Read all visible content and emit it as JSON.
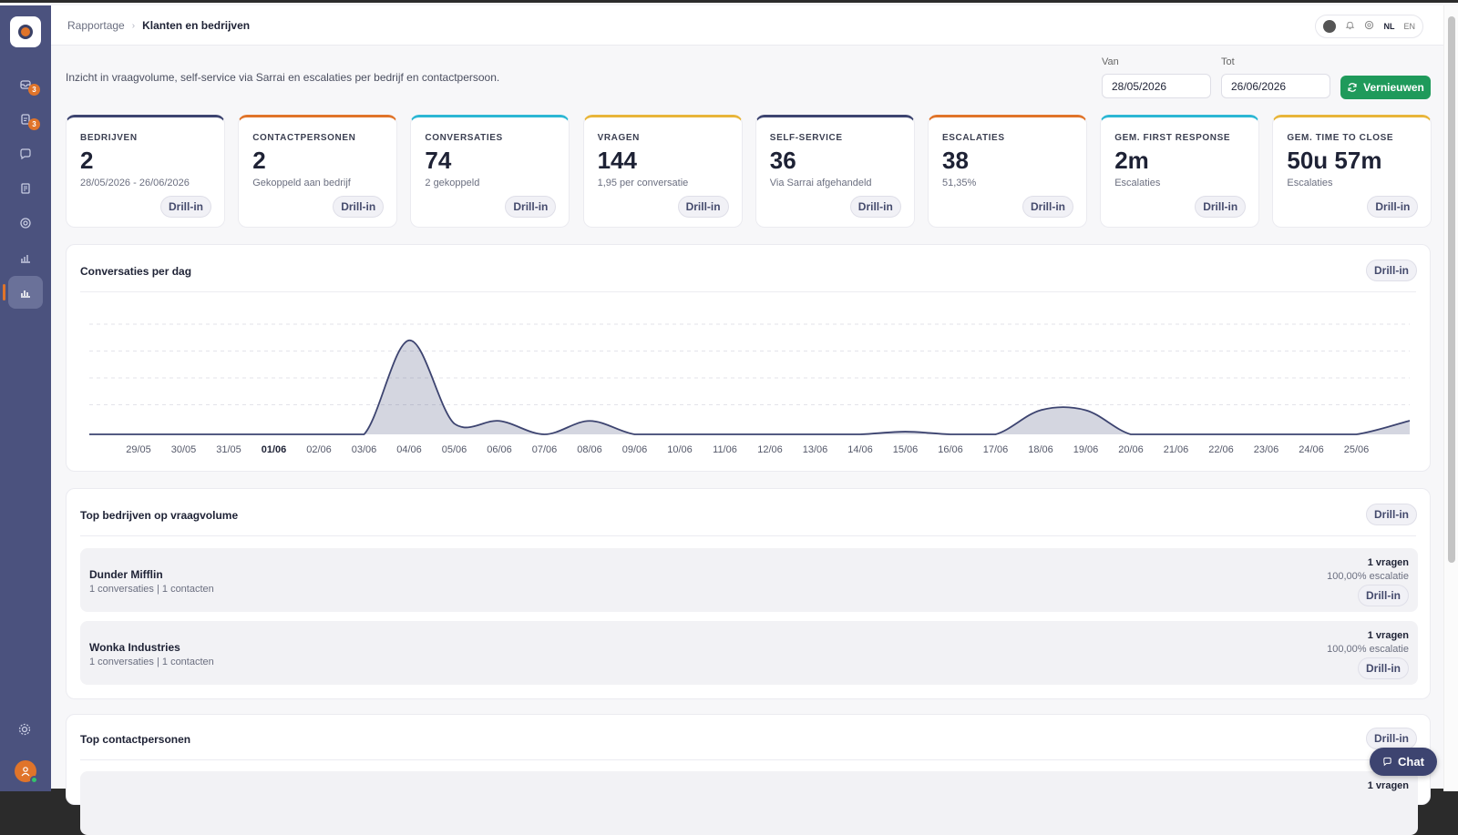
{
  "breadcrumb": {
    "parent": "Rapportage",
    "current": "Klanten en bedrijven"
  },
  "topbar": {
    "lang_active": "NL",
    "lang_other": "EN"
  },
  "sidebar": {
    "badges": [
      "3",
      "3"
    ]
  },
  "header": {
    "intro": "Inzicht in vraagvolume, self-service via Sarrai en escalaties per bedrijf en contactpersoon.",
    "from_label": "Van",
    "from_value": "28/05/2026",
    "to_label": "Tot",
    "to_value": "26/06/2026",
    "refresh_label": "Vernieuwen"
  },
  "drill_label": "Drill-in",
  "kpis": [
    {
      "label": "BEDRIJVEN",
      "value": "2",
      "sub": "28/05/2026 - 26/06/2026",
      "color": "#3d4470"
    },
    {
      "label": "CONTACTPERSONEN",
      "value": "2",
      "sub": "Gekoppeld aan bedrijf",
      "color": "#e0742a"
    },
    {
      "label": "CONVERSATIES",
      "value": "74",
      "sub": "2 gekoppeld",
      "color": "#2cb7d4"
    },
    {
      "label": "VRAGEN",
      "value": "144",
      "sub": "1,95 per conversatie",
      "color": "#e8b53a"
    },
    {
      "label": "SELF-SERVICE",
      "value": "36",
      "sub": "Via Sarrai afgehandeld",
      "color": "#3d4470"
    },
    {
      "label": "ESCALATIES",
      "value": "38",
      "sub": "51,35%",
      "color": "#e0742a"
    },
    {
      "label": "GEM. FIRST RESPONSE",
      "value": "2m",
      "sub": "Escalaties",
      "color": "#2cb7d4"
    },
    {
      "label": "GEM. TIME TO CLOSE",
      "value": "50u 57m",
      "sub": "Escalaties",
      "color": "#e8b53a"
    }
  ],
  "conversations_panel": {
    "title": "Conversaties per dag"
  },
  "chart_data": {
    "type": "area",
    "title": "Conversaties per dag",
    "categories": [
      "29/05",
      "30/05",
      "31/05",
      "01/06",
      "02/06",
      "03/06",
      "04/06",
      "05/06",
      "06/06",
      "07/06",
      "08/06",
      "09/06",
      "10/06",
      "11/06",
      "12/06",
      "13/06",
      "14/06",
      "15/06",
      "16/06",
      "17/06",
      "18/06",
      "19/06",
      "20/06",
      "21/06",
      "22/06",
      "23/06",
      "24/06",
      "25/06"
    ],
    "bold_category": "01/06",
    "series": [
      {
        "values": [
          0,
          0,
          0,
          0,
          0,
          0,
          35,
          4,
          5,
          0,
          5,
          0,
          0,
          0,
          0,
          0,
          0,
          1,
          0,
          0,
          9,
          9,
          0,
          0,
          0,
          0,
          0,
          0
        ]
      }
    ],
    "ylim": [
      0,
      40
    ],
    "grid": true,
    "color": "#3d4470"
  },
  "companies_panel": {
    "title": "Top bedrijven op vraagvolume",
    "rows": [
      {
        "name": "Dunder Mifflin",
        "sub": "1 conversaties | 1 contacten",
        "vragen": "1 vragen",
        "escalatie": "100,00% escalatie"
      },
      {
        "name": "Wonka Industries",
        "sub": "1 conversaties | 1 contacten",
        "vragen": "1 vragen",
        "escalatie": "100,00% escalatie"
      }
    ]
  },
  "contacts_panel": {
    "title": "Top contactpersonen",
    "first_vragen": "1 vragen"
  },
  "chat": {
    "label": "Chat"
  }
}
